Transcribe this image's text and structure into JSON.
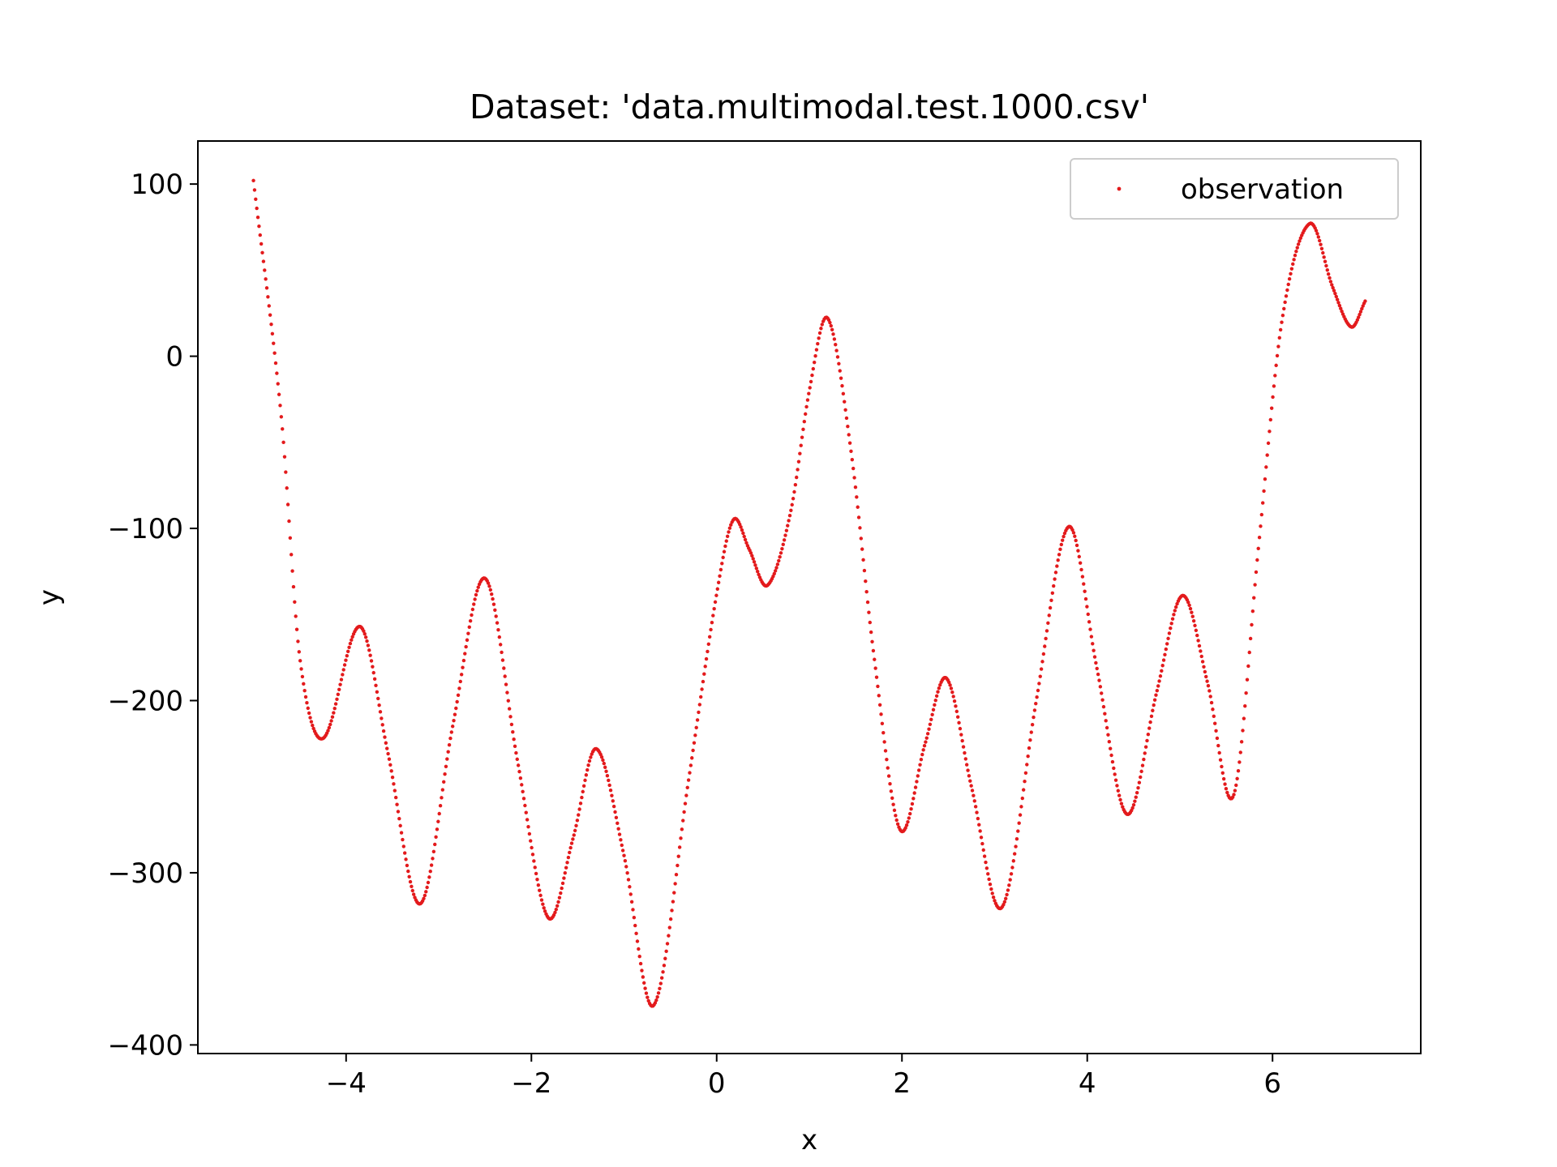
{
  "chart_data": {
    "type": "scatter",
    "title": "Dataset: 'data.multimodal.test.1000.csv'",
    "xlabel": "x",
    "ylabel": "y",
    "xlim": [
      -5.6,
      7.6
    ],
    "ylim": [
      -405,
      125
    ],
    "xticks": [
      -4,
      -2,
      0,
      2,
      4,
      6
    ],
    "xtick_labels": [
      "−4",
      "−2",
      "0",
      "2",
      "4",
      "6"
    ],
    "yticks": [
      100,
      0,
      -100,
      -200,
      -300,
      -400
    ],
    "ytick_labels": [
      "100",
      "0",
      "−100",
      "−200",
      "−300",
      "−400"
    ],
    "grid": false,
    "legend": {
      "position": "top-right",
      "entries": [
        "observation"
      ]
    },
    "series": [
      {
        "name": "observation",
        "color": "#e31a1c",
        "marker": "point",
        "n_points": 1000,
        "x_range": [
          -5.0,
          7.0
        ],
        "key_points": [
          {
            "x": -5.0,
            "y": 102
          },
          {
            "x": -4.7,
            "y": -35
          },
          {
            "x": -4.5,
            "y": -175
          },
          {
            "x": -4.25,
            "y": -222
          },
          {
            "x": -3.85,
            "y": -157
          },
          {
            "x": -3.55,
            "y": -230
          },
          {
            "x": -3.2,
            "y": -318
          },
          {
            "x": -2.85,
            "y": -215
          },
          {
            "x": -2.5,
            "y": -129
          },
          {
            "x": -2.15,
            "y": -235
          },
          {
            "x": -1.82,
            "y": -326
          },
          {
            "x": -1.55,
            "y": -280
          },
          {
            "x": -1.3,
            "y": -228
          },
          {
            "x": -1.0,
            "y": -290
          },
          {
            "x": -0.68,
            "y": -377
          },
          {
            "x": -0.3,
            "y": -245
          },
          {
            "x": 0.0,
            "y": -138
          },
          {
            "x": 0.18,
            "y": -95
          },
          {
            "x": 0.35,
            "y": -112
          },
          {
            "x": 0.55,
            "y": -133
          },
          {
            "x": 0.8,
            "y": -90
          },
          {
            "x": 1.0,
            "y": -20
          },
          {
            "x": 1.2,
            "y": 22
          },
          {
            "x": 1.45,
            "y": -55
          },
          {
            "x": 1.7,
            "y": -175
          },
          {
            "x": 1.98,
            "y": -275
          },
          {
            "x": 2.25,
            "y": -225
          },
          {
            "x": 2.48,
            "y": -187
          },
          {
            "x": 2.75,
            "y": -250
          },
          {
            "x": 3.08,
            "y": -320
          },
          {
            "x": 3.45,
            "y": -200
          },
          {
            "x": 3.8,
            "y": -99
          },
          {
            "x": 4.1,
            "y": -180
          },
          {
            "x": 4.43,
            "y": -266
          },
          {
            "x": 4.75,
            "y": -195
          },
          {
            "x": 5.03,
            "y": -139
          },
          {
            "x": 5.3,
            "y": -190
          },
          {
            "x": 5.58,
            "y": -255
          },
          {
            "x": 5.85,
            "y": -110
          },
          {
            "x": 6.1,
            "y": 20
          },
          {
            "x": 6.4,
            "y": 77
          },
          {
            "x": 6.65,
            "y": 40
          },
          {
            "x": 6.85,
            "y": 17
          },
          {
            "x": 7.0,
            "y": 32
          }
        ]
      }
    ]
  }
}
